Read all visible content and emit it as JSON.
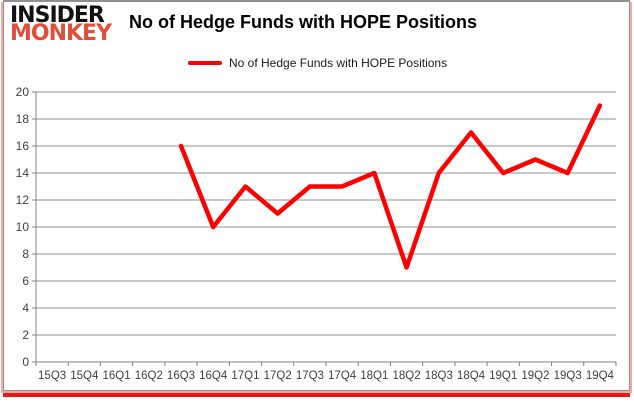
{
  "logo": {
    "line1": "INSIDER",
    "line2": "MONKEY"
  },
  "header": {
    "title": "No of Hedge Funds with HOPE Positions"
  },
  "legend": {
    "label": "No of Hedge Funds with HOPE Positions",
    "swatch_color": "#ff0000"
  },
  "colors": {
    "line": "#ff0000",
    "grid": "#909090",
    "axis_line": "#808080",
    "axis_text": "#3f3f3f",
    "logo_black": "#111111",
    "logo_red": "#e04f39",
    "frame_gray": "#8f8f8f",
    "frame_pink": "#f7a9a4",
    "frame_red": "#ee1515",
    "background": "#ffffff"
  },
  "chart_data": {
    "type": "line",
    "title": "No of Hedge Funds with HOPE Positions",
    "categories": [
      "15Q3",
      "15Q4",
      "16Q1",
      "16Q2",
      "16Q3",
      "16Q4",
      "17Q1",
      "17Q2",
      "17Q3",
      "17Q4",
      "18Q1",
      "18Q2",
      "18Q3",
      "18Q4",
      "19Q1",
      "19Q2",
      "19Q3",
      "19Q4"
    ],
    "values": [
      null,
      null,
      null,
      null,
      16,
      10,
      13,
      11,
      13,
      13,
      14,
      7,
      14,
      17,
      14,
      15,
      14,
      19
    ],
    "series_name": "No of Hedge Funds with HOPE Positions",
    "xlabel": "",
    "ylabel": "",
    "ylim": [
      0,
      20
    ],
    "yticks": [
      0,
      2,
      4,
      6,
      8,
      10,
      12,
      14,
      16,
      18,
      20
    ],
    "grid": true,
    "legend_position": "top-center"
  }
}
